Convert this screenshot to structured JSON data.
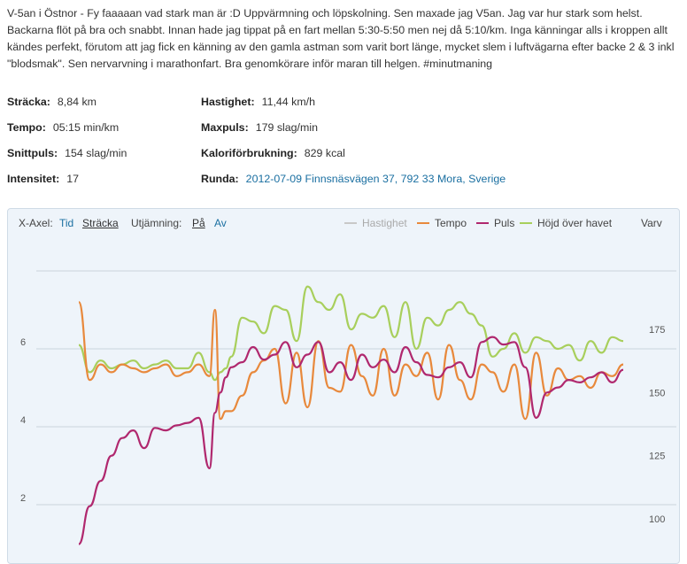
{
  "description": "V-5an i Östnor - Fy faaaaan vad stark man är :D Uppvärmning och löpskolning. Sen maxade jag V5an. Jag var hur stark som helst. Backarna flöt på bra och snabbt. Innan hade jag tippat på en fart mellan 5:30-5:50 men nej då 5:10/km. Inga känningar alls i kroppen allt kändes perfekt, förutom att jag fick en känning av den gamla astman som varit bort länge, mycket slem i luftvägarna efter backe 2 & 3 inkl \"blodsmak\". Sen nervarvning i marathonfart. Bra genomkörare inför maran till helgen. #minutmaning",
  "stats": {
    "distance": {
      "label": "Sträcka:",
      "value": "8,84 km"
    },
    "speed": {
      "label": "Hastighet:",
      "value": "11,44 km/h"
    },
    "pace": {
      "label": "Tempo:",
      "value": "05:15 min/km"
    },
    "maxpulse": {
      "label": "Maxpuls:",
      "value": "179 slag/min"
    },
    "avgpulse": {
      "label": "Snittpuls:",
      "value": "154 slag/min"
    },
    "calories": {
      "label": "Kaloriförbrukning:",
      "value": "829 kcal"
    },
    "intensity": {
      "label": "Intensitet:",
      "value": "17"
    },
    "route": {
      "label": "Runda:",
      "value": "2012-07-09 Finnsnäsvägen 37, 792 33 Mora, Sverige"
    }
  },
  "toolbar": {
    "xaxis_label": "X-Axel:",
    "x_time": "Tid",
    "x_distance": "Sträcka",
    "smoothing_label": "Utjämning:",
    "smooth_on": "På",
    "smooth_off": "Av",
    "laps": "Varv"
  },
  "legend": [
    {
      "name": "Hastighet",
      "color": "#c8c8c8",
      "enabled": false
    },
    {
      "name": "Tempo",
      "color": "#e8893c",
      "enabled": true
    },
    {
      "name": "Puls",
      "color": "#b0286e",
      "enabled": true
    },
    {
      "name": "Höjd över havet",
      "color": "#a8cf5c",
      "enabled": true
    }
  ],
  "chart_data": {
    "type": "line",
    "left_axis": {
      "ticks": [
        "2",
        "4",
        "6"
      ]
    },
    "right_axis": {
      "ticks": [
        "100",
        "125",
        "150",
        "175"
      ]
    },
    "grid": true,
    "series": [
      {
        "name": "Tempo",
        "color": "#e8893c",
        "x": [
          0,
          0.02,
          0.04,
          0.06,
          0.08,
          0.1,
          0.12,
          0.14,
          0.16,
          0.18,
          0.2,
          0.22,
          0.24,
          0.25,
          0.26,
          0.27,
          0.28,
          0.3,
          0.32,
          0.34,
          0.36,
          0.38,
          0.4,
          0.42,
          0.44,
          0.46,
          0.48,
          0.5,
          0.52,
          0.54,
          0.56,
          0.58,
          0.6,
          0.62,
          0.64,
          0.66,
          0.68,
          0.7,
          0.72,
          0.74,
          0.76,
          0.78,
          0.8,
          0.82,
          0.84,
          0.86,
          0.88,
          0.9,
          0.92,
          0.94,
          0.96,
          0.98,
          1.0
        ],
        "y": [
          7.2,
          5.2,
          5.6,
          5.4,
          5.6,
          5.5,
          5.4,
          5.5,
          5.6,
          5.3,
          5.4,
          5.6,
          5.3,
          7.0,
          4.2,
          4.4,
          4.4,
          4.8,
          5.4,
          5.7,
          6.0,
          4.6,
          5.9,
          4.5,
          6.2,
          5.0,
          4.9,
          6.1,
          5.3,
          4.8,
          6.0,
          4.8,
          5.6,
          5.3,
          5.9,
          4.7,
          6.1,
          5.2,
          4.7,
          5.6,
          5.4,
          4.9,
          5.6,
          4.2,
          5.9,
          4.8,
          5.5,
          5.2,
          5.3,
          5.0,
          5.4,
          5.3,
          5.6
        ]
      },
      {
        "name": "Puls",
        "color": "#b0286e",
        "x": [
          0,
          0.02,
          0.04,
          0.06,
          0.08,
          0.1,
          0.12,
          0.14,
          0.16,
          0.18,
          0.2,
          0.22,
          0.24,
          0.25,
          0.26,
          0.27,
          0.28,
          0.3,
          0.32,
          0.34,
          0.36,
          0.38,
          0.4,
          0.42,
          0.44,
          0.46,
          0.48,
          0.5,
          0.52,
          0.54,
          0.56,
          0.58,
          0.6,
          0.62,
          0.64,
          0.66,
          0.68,
          0.7,
          0.72,
          0.74,
          0.76,
          0.78,
          0.8,
          0.82,
          0.84,
          0.86,
          0.88,
          0.9,
          0.92,
          0.94,
          0.96,
          0.98,
          1.0
        ],
        "y": [
          90,
          105,
          115,
          125,
          132,
          135,
          128,
          136,
          135,
          137,
          138,
          140,
          120,
          142,
          150,
          156,
          160,
          162,
          168,
          163,
          165,
          170,
          160,
          165,
          170,
          158,
          162,
          155,
          165,
          160,
          163,
          158,
          168,
          162,
          157,
          156,
          160,
          162,
          156,
          170,
          172,
          169,
          170,
          160,
          140,
          150,
          152,
          155,
          154,
          156,
          158,
          154,
          159
        ]
      },
      {
        "name": "Höjd över havet",
        "color": "#a8cf5c",
        "x": [
          0,
          0.02,
          0.04,
          0.06,
          0.08,
          0.1,
          0.12,
          0.14,
          0.16,
          0.18,
          0.2,
          0.22,
          0.24,
          0.25,
          0.26,
          0.27,
          0.28,
          0.3,
          0.32,
          0.34,
          0.36,
          0.38,
          0.4,
          0.42,
          0.44,
          0.46,
          0.48,
          0.5,
          0.52,
          0.54,
          0.56,
          0.58,
          0.6,
          0.62,
          0.64,
          0.66,
          0.68,
          0.7,
          0.72,
          0.74,
          0.76,
          0.78,
          0.8,
          0.82,
          0.84,
          0.86,
          0.88,
          0.9,
          0.92,
          0.94,
          0.96,
          0.98,
          1.0
        ],
        "y": [
          6.1,
          5.4,
          5.7,
          5.5,
          5.6,
          5.7,
          5.5,
          5.6,
          5.7,
          5.5,
          5.5,
          5.9,
          5.4,
          5.2,
          5.4,
          5.5,
          5.8,
          6.8,
          6.7,
          6.4,
          7.1,
          7.0,
          6.2,
          7.6,
          7.2,
          7.0,
          7.4,
          6.5,
          6.9,
          6.8,
          7.1,
          6.3,
          7.2,
          6.0,
          6.8,
          6.6,
          7.0,
          7.2,
          6.9,
          6.6,
          5.8,
          6.0,
          6.4,
          5.9,
          6.3,
          6.2,
          6.0,
          6.1,
          5.7,
          6.2,
          5.9,
          6.3,
          6.2
        ]
      }
    ]
  }
}
